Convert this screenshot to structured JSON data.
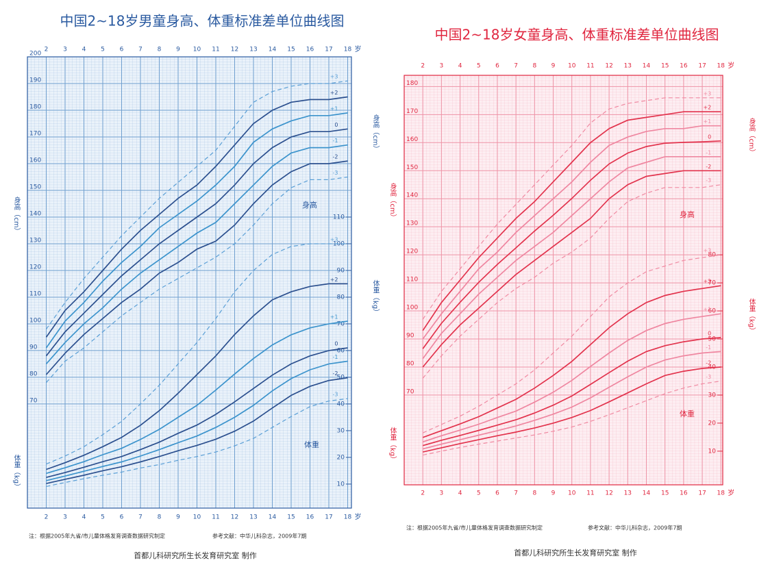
{
  "chart_data": [
    {
      "type": "line",
      "title": "中国2~18岁男童身高、体重标准差单位曲线图",
      "title_color": "#2a5aa0",
      "background": "#eaf2fa",
      "grid_color": "#6f9fcf",
      "grid": true,
      "x": [
        2,
        3,
        4,
        5,
        6,
        7,
        8,
        9,
        10,
        11,
        12,
        13,
        14,
        15,
        16,
        17,
        18
      ],
      "xlim": [
        1,
        18.2
      ],
      "xticks": [
        2,
        3,
        4,
        5,
        6,
        7,
        8,
        9,
        10,
        11,
        12,
        13,
        14,
        15,
        16,
        17,
        18
      ],
      "x_unit": "岁",
      "ylim": [
        31,
        200
      ],
      "yticks": [
        70,
        80,
        90,
        100,
        110,
        120,
        130,
        140,
        150,
        160,
        170,
        180,
        190,
        200
      ],
      "y_label": "身高（cm）",
      "y2lim": [
        1,
        170
      ],
      "y2ticks": [
        10,
        20,
        30,
        40,
        50,
        60,
        70,
        80,
        90,
        100,
        110
      ],
      "y2_label": "体重（kg）",
      "annotations": [
        "身高",
        "体重"
      ],
      "series": [
        {
          "name": "-3",
          "color": "#5a9fd6",
          "dashed": true,
          "values": [
            78,
            86,
            91,
            97,
            103,
            108,
            113,
            117,
            121,
            125,
            130,
            137,
            145,
            151,
            154,
            154,
            155
          ]
        },
        {
          "name": "-2",
          "color": "#2b4f8e",
          "values": [
            81,
            89,
            96,
            102,
            108,
            113,
            119,
            123,
            128,
            131,
            137,
            145,
            152,
            157,
            160,
            160,
            161
          ]
        },
        {
          "name": "-1",
          "color": "#3b93cc",
          "values": [
            85,
            93,
            100,
            106,
            113,
            119,
            124,
            129,
            134,
            138,
            145,
            152,
            159,
            164,
            166,
            166,
            167
          ]
        },
        {
          "name": "0",
          "color": "#2b4f8e",
          "values": [
            88,
            97,
            104,
            111,
            118,
            124,
            130,
            135,
            140,
            145,
            152,
            160,
            166,
            170,
            172,
            172,
            173
          ]
        },
        {
          "name": "+1",
          "color": "#3b93cc",
          "values": [
            91,
            101,
            108,
            116,
            123,
            129,
            136,
            141,
            146,
            152,
            159,
            168,
            173,
            176,
            178,
            178,
            179
          ]
        },
        {
          "name": "+2",
          "color": "#2b4f8e",
          "values": [
            95,
            105,
            112,
            120,
            128,
            135,
            141,
            147,
            152,
            159,
            167,
            175,
            180,
            183,
            184,
            184,
            185
          ]
        },
        {
          "name": "+3",
          "color": "#5a9fd6",
          "dashed": true,
          "values": [
            98,
            108,
            117,
            125,
            133,
            140,
            147,
            153,
            159,
            165,
            174,
            183,
            187,
            189,
            190,
            190,
            191
          ]
        },
        {
          "name": "-3",
          "color": "#5a9fd6",
          "dashed": true,
          "axis": "y2",
          "values": [
            9.1,
            10.6,
            12,
            13.3,
            14.5,
            16,
            17.3,
            18.9,
            20.3,
            22,
            24.3,
            27.1,
            31.2,
            35.3,
            39,
            41.1,
            42
          ]
        },
        {
          "name": "-2",
          "color": "#2b4f8e",
          "axis": "y2",
          "values": [
            10.2,
            11.8,
            13.3,
            15,
            16.5,
            18.3,
            20.3,
            22.5,
            24.5,
            26.8,
            29.8,
            33.6,
            38.5,
            43.2,
            46.6,
            48.8,
            49.8
          ]
        },
        {
          "name": "-1",
          "color": "#3b93cc",
          "axis": "y2",
          "values": [
            11.3,
            13,
            14.8,
            16.6,
            18.3,
            20.5,
            22.9,
            25.5,
            28,
            31.2,
            35,
            39.5,
            44.9,
            49.5,
            52.8,
            55,
            56
          ]
        },
        {
          "name": "0",
          "color": "#2b4f8e",
          "axis": "y2",
          "values": [
            12.5,
            14.3,
            16.3,
            18.4,
            20.3,
            22.9,
            25.7,
            29,
            32.1,
            36.1,
            40.8,
            45.8,
            50.8,
            55,
            58,
            60,
            61
          ]
        },
        {
          "name": "+1",
          "color": "#3b93cc",
          "axis": "y2",
          "values": [
            14,
            16.1,
            18.4,
            21,
            23.4,
            26.7,
            30.5,
            35,
            39.5,
            45.2,
            51.2,
            57,
            62.1,
            65.9,
            68.5,
            70,
            71
          ]
        },
        {
          "name": "+2",
          "color": "#2b4f8e",
          "axis": "y2",
          "values": [
            15.5,
            18,
            20.8,
            24,
            27.5,
            32,
            37.5,
            44,
            51,
            58,
            66,
            73,
            79,
            82,
            84,
            85,
            85
          ]
        },
        {
          "name": "+3",
          "color": "#5a9fd6",
          "dashed": true,
          "axis": "y2",
          "values": [
            17.5,
            20.5,
            24,
            28.5,
            33.5,
            40,
            47,
            55,
            63,
            72,
            82,
            90,
            96,
            99,
            100,
            100,
            100
          ]
        }
      ],
      "note": "注：根据2005年九省/市儿童体格发育调查数据研究制定",
      "reference": "参考文献：中华儿科杂志，2009年7期",
      "credit": "首都儿科研究所生长发育研究室 制作"
    },
    {
      "type": "line",
      "title": "中国2~18岁女童身高、体重标准差单位曲线图",
      "title_color": "#e0263f",
      "background": "#fdeef2",
      "grid_color": "#ee93a6",
      "grid": true,
      "x": [
        2,
        3,
        4,
        5,
        6,
        7,
        8,
        9,
        10,
        11,
        12,
        13,
        14,
        15,
        16,
        17,
        18
      ],
      "xlim": [
        1,
        18.1
      ],
      "xticks": [
        2,
        3,
        4,
        5,
        6,
        7,
        8,
        9,
        10,
        11,
        12,
        13,
        14,
        15,
        16,
        17,
        18
      ],
      "x_unit": "岁",
      "ylim": [
        38,
        184
      ],
      "yticks": [
        70,
        80,
        90,
        100,
        110,
        120,
        130,
        140,
        150,
        160,
        170,
        180
      ],
      "y_label": "身高（cm）",
      "y2lim": [
        -2,
        144
      ],
      "y2ticks": [
        10,
        20,
        30,
        40,
        50,
        60,
        70,
        80
      ],
      "y2_label": "体重（kg）",
      "annotations": [
        "身高",
        "体重"
      ],
      "series": [
        {
          "name": "-3",
          "color": "#f08aa2",
          "dashed": true,
          "values": [
            76,
            84,
            91,
            97,
            103,
            108,
            112,
            117,
            121,
            126,
            133,
            139,
            142,
            144,
            144,
            144,
            145
          ]
        },
        {
          "name": "-2",
          "color": "#e2324c",
          "values": [
            80,
            88,
            95,
            101,
            107,
            113,
            118,
            123,
            128,
            133,
            140,
            145,
            148,
            149,
            150,
            150,
            150
          ]
        },
        {
          "name": "-1",
          "color": "#ef86a0",
          "values": [
            83,
            92,
            99,
            106,
            112,
            118,
            123,
            128,
            134,
            140,
            146,
            151,
            153,
            155,
            155,
            155,
            155
          ]
        },
        {
          "name": "0",
          "color": "#e2324c",
          "values": [
            86.5,
            95.6,
            103.1,
            110.2,
            116.6,
            122.5,
            128.5,
            134.1,
            140.1,
            146.6,
            152.4,
            156.3,
            158.6,
            159.8,
            160.1,
            160.3,
            160.6
          ]
        },
        {
          "name": "+1",
          "color": "#ef86a0",
          "values": [
            90,
            99,
            107,
            115,
            121,
            128,
            134,
            140,
            146,
            153,
            159,
            162,
            164,
            165,
            165,
            166,
            166
          ]
        },
        {
          "name": "+2",
          "color": "#e2324c",
          "values": [
            93,
            103,
            111,
            119,
            126,
            133,
            139,
            146,
            153,
            160,
            165,
            168,
            169,
            170,
            171,
            171,
            171
          ]
        },
        {
          "name": "+3",
          "color": "#f08aa2",
          "dashed": true,
          "values": [
            97,
            107,
            115,
            123,
            131,
            138,
            145,
            152,
            159,
            167,
            172,
            174,
            175,
            176,
            176,
            176,
            176
          ]
        },
        {
          "name": "-3",
          "color": "#f08aa2",
          "dashed": true,
          "axis": "y2",
          "values": [
            8.6,
            10,
            11.3,
            12.5,
            13.6,
            14.7,
            15.8,
            17.1,
            18.6,
            20.6,
            23,
            25.5,
            28,
            30.5,
            32.5,
            34,
            35
          ]
        },
        {
          "name": "-2",
          "color": "#e2324c",
          "axis": "y2",
          "values": [
            9.7,
            11.2,
            12.7,
            14.1,
            15.5,
            16.8,
            18.3,
            20,
            22,
            24.5,
            27.6,
            30.8,
            34,
            37,
            38.5,
            39.5,
            40
          ]
        },
        {
          "name": "-1",
          "color": "#ef86a0",
          "axis": "y2",
          "values": [
            10.8,
            12.5,
            14.1,
            15.7,
            17.3,
            19,
            21,
            23.2,
            25.7,
            29,
            32.8,
            36.5,
            40,
            42.5,
            44,
            45,
            45.5
          ]
        },
        {
          "name": "0",
          "color": "#e2324c",
          "axis": "y2",
          "values": [
            12,
            13.9,
            15.6,
            17.4,
            19.3,
            21.2,
            23.6,
            26.4,
            29.7,
            33.8,
            38,
            42.1,
            45.5,
            47.6,
            49,
            50,
            50.5
          ]
        },
        {
          "name": "+1",
          "color": "#ef86a0",
          "axis": "y2",
          "values": [
            13.3,
            15.5,
            17.5,
            19.6,
            22,
            24.3,
            27.5,
            31,
            35.2,
            40.2,
            45,
            49.5,
            53,
            55.5,
            57,
            58,
            59
          ]
        },
        {
          "name": "+2",
          "color": "#e2324c",
          "axis": "y2",
          "values": [
            14.9,
            17.3,
            19.7,
            22.3,
            25.4,
            28.5,
            32.5,
            37,
            42,
            48,
            54,
            59,
            63,
            65.5,
            67,
            68,
            69
          ]
        },
        {
          "name": "+3",
          "color": "#f08aa2",
          "dashed": true,
          "axis": "y2",
          "values": [
            16.5,
            19.5,
            22.5,
            26,
            30,
            34,
            39,
            45,
            51,
            58,
            65,
            70,
            74,
            76,
            78,
            79,
            80
          ]
        }
      ],
      "note": "注：根据2005年九省/市儿童体格发育调查数据研究制定",
      "reference": "参考文献：中华儿科杂志，2009年7期",
      "credit": "首都儿科研究所生长发育研究室 制作"
    }
  ]
}
